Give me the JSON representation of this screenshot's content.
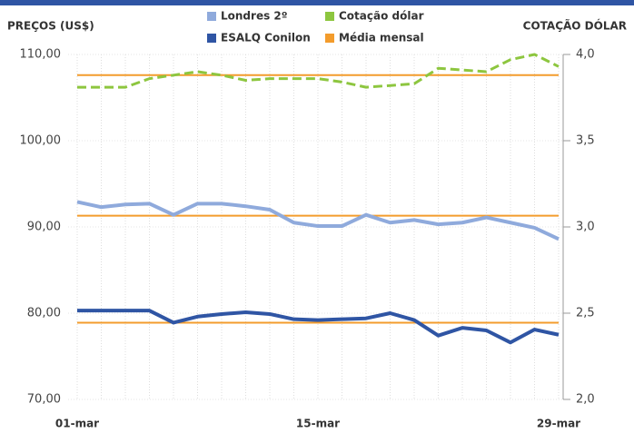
{
  "chart_data": {
    "type": "line",
    "y_label": "PREÇOS (US$)",
    "y2_label": "COTAÇÃO DÓLAR",
    "categories": [
      "01-mar",
      null,
      null,
      null,
      null,
      null,
      null,
      null,
      null,
      null,
      "15-mar",
      null,
      null,
      null,
      null,
      null,
      null,
      null,
      null,
      null,
      "29-mar"
    ],
    "series": [
      {
        "name": "Londres 2º",
        "color": "#8faadc",
        "axis": "y",
        "values": [
          92.9,
          92.3,
          92.6,
          92.7,
          91.4,
          92.7,
          92.7,
          92.4,
          92.0,
          90.5,
          90.1,
          90.1,
          91.4,
          90.5,
          90.8,
          90.3,
          90.5,
          91.1,
          90.5,
          89.9,
          88.6
        ]
      },
      {
        "name": "Cotação dólar",
        "color": "#8dc63f",
        "axis": "y2",
        "dashed": true,
        "values": [
          3.81,
          3.81,
          3.81,
          3.86,
          3.88,
          3.9,
          3.88,
          3.85,
          3.86,
          3.86,
          3.86,
          3.84,
          3.81,
          3.82,
          3.83,
          3.92,
          3.91,
          3.9,
          3.97,
          4.0,
          3.93
        ]
      },
      {
        "name": "ESALQ Conilon",
        "color": "#2f55a4",
        "axis": "y",
        "values": [
          80.3,
          80.3,
          80.3,
          80.3,
          78.9,
          79.6,
          79.9,
          80.1,
          79.9,
          79.3,
          79.2,
          79.3,
          79.4,
          80.0,
          79.2,
          77.4,
          78.3,
          78.0,
          76.6,
          78.1,
          77.5
        ]
      }
    ],
    "reference_lines": {
      "name": "Média mensal",
      "color": "#f39c2c",
      "lines": [
        {
          "value": 91.3,
          "axis": "y"
        },
        {
          "value": 78.9,
          "axis": "y"
        },
        {
          "value": 3.88,
          "axis": "y2"
        }
      ]
    },
    "ylim": [
      70,
      110
    ],
    "yticks": [
      {
        "value": 70,
        "label": "70,00"
      },
      {
        "value": 80,
        "label": "80,00"
      },
      {
        "value": 90,
        "label": "90,00"
      },
      {
        "value": 100,
        "label": "100,00"
      },
      {
        "value": 110,
        "label": "110,00"
      }
    ],
    "y2lim": [
      2,
      4
    ],
    "y2ticks": [
      {
        "value": 2,
        "label": "2,0"
      },
      {
        "value": 2.5,
        "label": "2,5"
      },
      {
        "value": 3,
        "label": "3,0"
      },
      {
        "value": 3.5,
        "label": "3,5"
      },
      {
        "value": 4,
        "label": "4,0"
      }
    ],
    "grid": true
  }
}
